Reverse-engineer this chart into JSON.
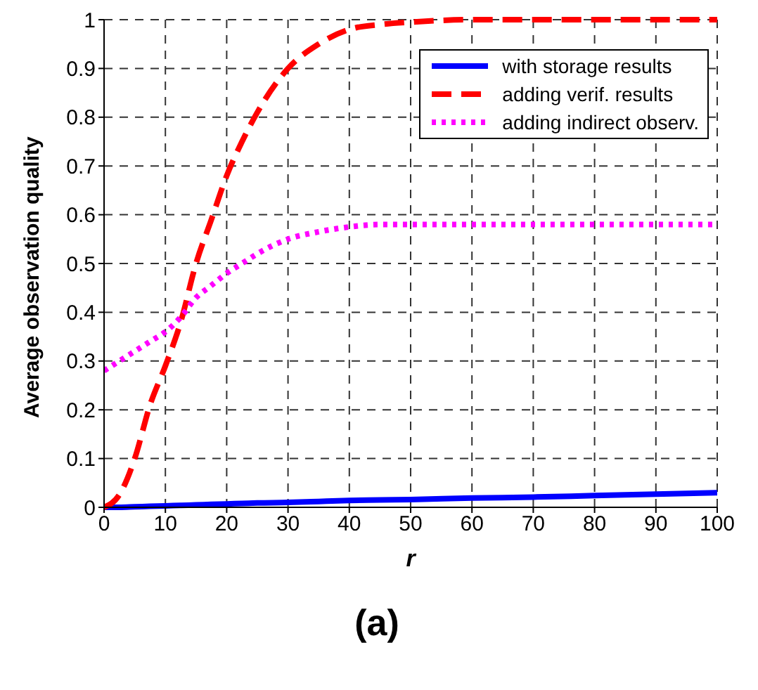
{
  "chart_data": {
    "type": "line",
    "title": "(a)",
    "xlabel": "r",
    "ylabel": "Average observation quality",
    "x": [
      0,
      2.5,
      5,
      7.5,
      10,
      12.5,
      15,
      17.5,
      20,
      22.5,
      25,
      30,
      35,
      40,
      45,
      50,
      60,
      70,
      80,
      90,
      100
    ],
    "series": [
      {
        "name": "with storage results",
        "color": "#0000ff",
        "line_style": "solid",
        "values": [
          0,
          0,
          0.001,
          0.002,
          0.003,
          0.004,
          0.005,
          0.006,
          0.007,
          0.008,
          0.009,
          0.01,
          0.012,
          0.014,
          0.015,
          0.016,
          0.019,
          0.021,
          0.024,
          0.027,
          0.03
        ]
      },
      {
        "name": "adding verif. results",
        "color": "#ff0000",
        "line_style": "dashed",
        "values": [
          0,
          0.026,
          0.1,
          0.21,
          0.29,
          0.38,
          0.5,
          0.59,
          0.68,
          0.75,
          0.81,
          0.9,
          0.95,
          0.98,
          0.99,
          0.995,
          1,
          1,
          1,
          1,
          1
        ]
      },
      {
        "name": "adding indirect observ.",
        "color": "#ff00ff",
        "line_style": "dotted",
        "values": [
          0.28,
          0.3,
          0.32,
          0.34,
          0.36,
          0.39,
          0.43,
          0.455,
          0.48,
          0.5,
          0.52,
          0.55,
          0.565,
          0.575,
          0.58,
          0.58,
          0.58,
          0.58,
          0.58,
          0.58,
          0.58
        ]
      }
    ],
    "xlim": [
      0,
      100
    ],
    "xticks": [
      0,
      10,
      20,
      30,
      40,
      50,
      60,
      70,
      80,
      90,
      100
    ],
    "ylim": [
      0,
      1
    ],
    "yticks": [
      0,
      0.1,
      0.2,
      0.3,
      0.4,
      0.5,
      0.6,
      0.7,
      0.8,
      0.9,
      1
    ],
    "grid": true,
    "legend": "top right",
    "marker": "none"
  }
}
